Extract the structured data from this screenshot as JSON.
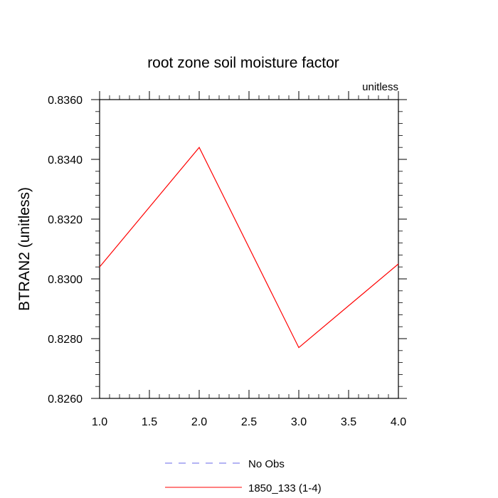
{
  "chart_data": {
    "type": "line",
    "title": "root zone soil moisture factor",
    "units_label": "unitless",
    "ylabel": "BTRAN2  (unitless)",
    "xlabel": "",
    "xlim": [
      1.0,
      4.0
    ],
    "ylim": [
      0.826,
      0.836
    ],
    "x_ticks": [
      "1.0",
      "1.5",
      "2.0",
      "2.5",
      "3.0",
      "3.5",
      "4.0"
    ],
    "x_tick_values": [
      1.0,
      1.5,
      2.0,
      2.5,
      3.0,
      3.5,
      4.0
    ],
    "y_ticks": [
      "0.8260",
      "0.8280",
      "0.8300",
      "0.8320",
      "0.8340",
      "0.8360"
    ],
    "y_tick_values": [
      0.826,
      0.828,
      0.83,
      0.832,
      0.834,
      0.836
    ],
    "series": [
      {
        "name": "1850_133 (1-4)",
        "color": "#ff0000",
        "style": "solid",
        "x": [
          1.0,
          2.0,
          3.0,
          4.0
        ],
        "values": [
          0.8304,
          0.8344,
          0.8277,
          0.8305
        ]
      }
    ],
    "legend": [
      {
        "label": "No Obs",
        "color": "#6a6ae8",
        "style": "dashed"
      },
      {
        "label": "1850_133 (1-4)",
        "color": "#ff0000",
        "style": "solid"
      }
    ],
    "legend_position": "bottom-center"
  }
}
